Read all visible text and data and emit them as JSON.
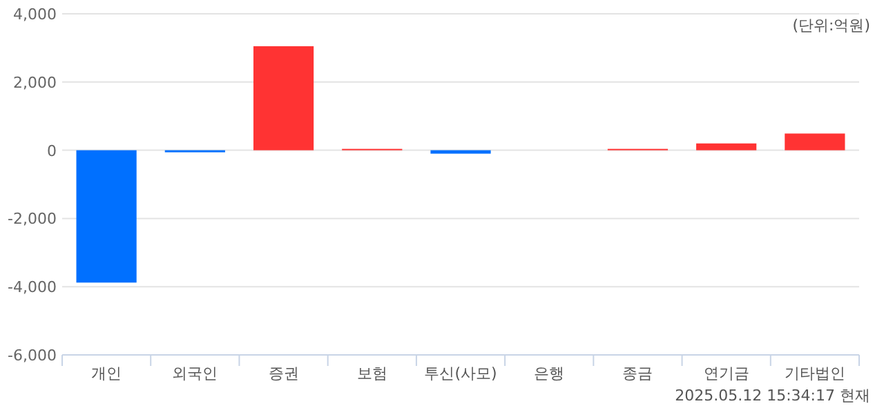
{
  "chart_data": {
    "type": "bar",
    "categories": [
      "개인",
      "외국인",
      "증권",
      "보험",
      "투신(사모)",
      "은행",
      "종금",
      "연기금",
      "기타법인"
    ],
    "values": [
      -3880,
      -60,
      3050,
      40,
      -100,
      0,
      40,
      200,
      490
    ],
    "colors": [
      "#0070ff",
      "#0070ff",
      "#ff3333",
      "#ff3333",
      "#0070ff",
      "#0070ff",
      "#ff3333",
      "#ff3333",
      "#ff3333"
    ],
    "ylim": [
      -6000,
      4000
    ],
    "yticks": [
      {
        "value": -6000,
        "label": "-6,000"
      },
      {
        "value": -4000,
        "label": "-4,000"
      },
      {
        "value": -2000,
        "label": "-2,000"
      },
      0,
      {
        "value": 2000,
        "label": "2,000"
      },
      {
        "value": 4000,
        "label": "4,000"
      }
    ],
    "grid": "y",
    "annotations": [
      "(단위:억원)",
      "2025.05.12 15:34:17 현재"
    ]
  }
}
